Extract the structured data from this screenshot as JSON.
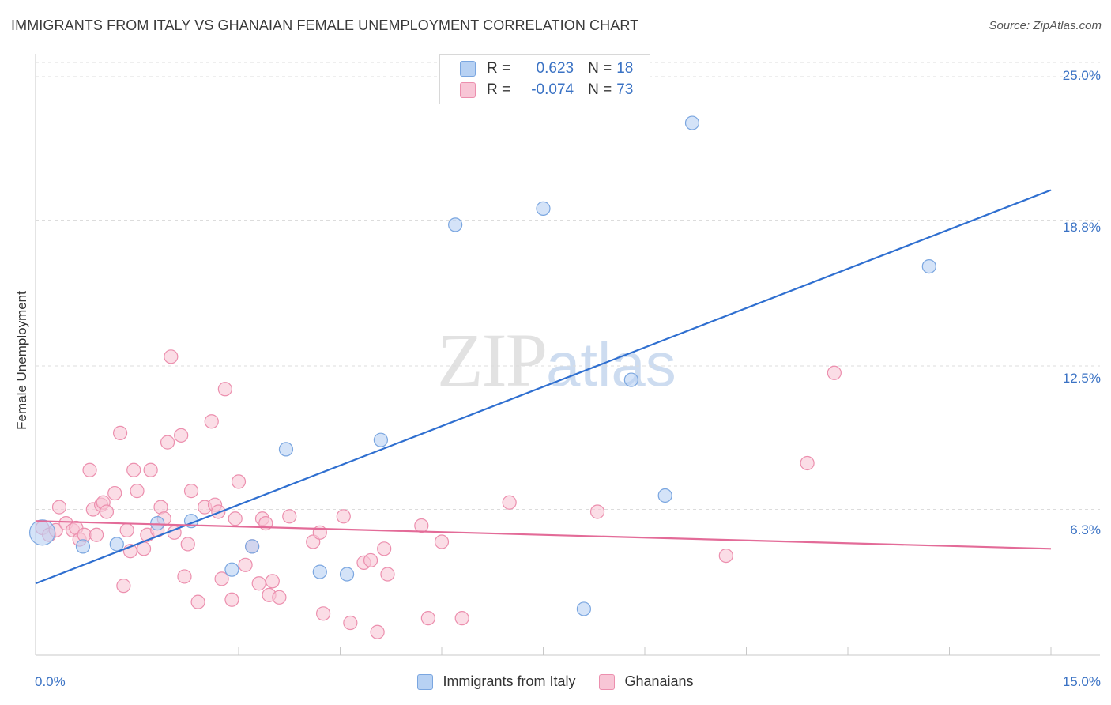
{
  "header": {
    "title": "IMMIGRANTS FROM ITALY VS GHANAIAN FEMALE UNEMPLOYMENT CORRELATION CHART",
    "source": "Source: ZipAtlas.com"
  },
  "watermark": {
    "zip": "ZIP",
    "atlas": "atlas"
  },
  "colors": {
    "blue_fill": "#b7d1f3",
    "blue_stroke": "#7aa6e0",
    "blue_line": "#2f6fd0",
    "pink_fill": "#f8c6d6",
    "pink_stroke": "#ec8fae",
    "pink_line": "#e36b98",
    "grid": "#dcdcdc",
    "axis_text": "#3a72c4"
  },
  "legend": {
    "rows": [
      {
        "r_label": "R =",
        "r_value": "0.623",
        "n_label": "N =",
        "n_value": "18"
      },
      {
        "r_label": "R =",
        "r_value": "-0.074",
        "n_label": "N =",
        "n_value": "73"
      }
    ]
  },
  "chart_data": {
    "type": "scatter",
    "title": "IMMIGRANTS FROM ITALY VS GHANAIAN FEMALE UNEMPLOYMENT CORRELATION CHART",
    "xlabel": "",
    "ylabel": "Female Unemployment",
    "xlim": [
      0,
      15
    ],
    "ylim": [
      0,
      25
    ],
    "x_tick_labels": [
      "0.0%",
      "15.0%"
    ],
    "y_ticks": [
      6.3,
      12.5,
      18.8,
      25.0
    ],
    "y_tick_labels": [
      "6.3%",
      "12.5%",
      "18.8%",
      "25.0%"
    ],
    "grid": true,
    "series": [
      {
        "name": "Immigrants from Italy",
        "color": "#b7d1f3",
        "points": [
          [
            0.1,
            5.3,
            3
          ],
          [
            0.7,
            4.7,
            1
          ],
          [
            1.2,
            4.8,
            1
          ],
          [
            1.8,
            5.7,
            1
          ],
          [
            2.3,
            5.8,
            1
          ],
          [
            2.9,
            3.7,
            1
          ],
          [
            3.2,
            4.7,
            1
          ],
          [
            3.7,
            8.9,
            1
          ],
          [
            4.2,
            3.6,
            1
          ],
          [
            4.6,
            3.5,
            1
          ],
          [
            5.1,
            9.3,
            1
          ],
          [
            6.2,
            18.6,
            1
          ],
          [
            7.5,
            19.3,
            1
          ],
          [
            8.1,
            2.0,
            1
          ],
          [
            8.8,
            11.9,
            1
          ],
          [
            9.3,
            6.9,
            1
          ],
          [
            9.7,
            23.0,
            1
          ],
          [
            13.2,
            16.8,
            1
          ]
        ],
        "trend": {
          "x": [
            0,
            15
          ],
          "y": [
            3.1,
            20.1
          ]
        }
      },
      {
        "name": "Ghanaians",
        "color": "#f8c6d6",
        "points": [
          [
            0.1,
            5.5,
            1
          ],
          [
            0.2,
            5.2,
            1
          ],
          [
            0.3,
            5.4,
            1
          ],
          [
            0.35,
            6.4,
            1
          ],
          [
            0.45,
            5.7,
            1
          ],
          [
            0.55,
            5.4,
            1
          ],
          [
            0.6,
            5.5,
            1
          ],
          [
            0.65,
            5.0,
            1
          ],
          [
            0.72,
            5.2,
            1
          ],
          [
            0.8,
            8.0,
            1
          ],
          [
            0.85,
            6.3,
            1
          ],
          [
            0.9,
            5.2,
            1
          ],
          [
            0.97,
            6.5,
            1
          ],
          [
            1.0,
            6.6,
            1
          ],
          [
            1.05,
            6.2,
            1
          ],
          [
            1.17,
            7.0,
            1
          ],
          [
            1.25,
            9.6,
            1
          ],
          [
            1.3,
            3.0,
            1
          ],
          [
            1.35,
            5.4,
            1
          ],
          [
            1.4,
            4.5,
            1
          ],
          [
            1.45,
            8.0,
            1
          ],
          [
            1.5,
            7.1,
            1
          ],
          [
            1.6,
            4.6,
            1
          ],
          [
            1.65,
            5.2,
            1
          ],
          [
            1.7,
            8.0,
            1
          ],
          [
            1.8,
            5.4,
            1
          ],
          [
            1.85,
            6.4,
            1
          ],
          [
            1.9,
            5.9,
            1
          ],
          [
            1.95,
            9.2,
            1
          ],
          [
            2.0,
            12.9,
            1
          ],
          [
            2.05,
            5.3,
            1
          ],
          [
            2.15,
            9.5,
            1
          ],
          [
            2.2,
            3.4,
            1
          ],
          [
            2.25,
            4.8,
            1
          ],
          [
            2.3,
            7.1,
            1
          ],
          [
            2.4,
            2.3,
            1
          ],
          [
            2.5,
            6.4,
            1
          ],
          [
            2.6,
            10.1,
            1
          ],
          [
            2.65,
            6.5,
            1
          ],
          [
            2.7,
            6.2,
            1
          ],
          [
            2.75,
            3.3,
            1
          ],
          [
            2.8,
            11.5,
            1
          ],
          [
            2.9,
            2.4,
            1
          ],
          [
            2.95,
            5.9,
            1
          ],
          [
            3.0,
            7.5,
            1
          ],
          [
            3.1,
            3.9,
            1
          ],
          [
            3.2,
            4.7,
            1
          ],
          [
            3.3,
            3.1,
            1
          ],
          [
            3.35,
            5.9,
            1
          ],
          [
            3.4,
            5.7,
            1
          ],
          [
            3.45,
            2.6,
            1
          ],
          [
            3.5,
            3.2,
            1
          ],
          [
            3.6,
            2.5,
            1
          ],
          [
            3.75,
            6.0,
            1
          ],
          [
            4.1,
            4.9,
            1
          ],
          [
            4.2,
            5.3,
            1
          ],
          [
            4.25,
            1.8,
            1
          ],
          [
            4.55,
            6.0,
            1
          ],
          [
            4.65,
            1.4,
            1
          ],
          [
            4.85,
            4.0,
            1
          ],
          [
            4.95,
            4.1,
            1
          ],
          [
            5.05,
            1.0,
            1
          ],
          [
            5.15,
            4.6,
            1
          ],
          [
            5.2,
            3.5,
            1
          ],
          [
            5.7,
            5.6,
            1
          ],
          [
            5.8,
            1.6,
            1
          ],
          [
            6.0,
            4.9,
            1
          ],
          [
            6.3,
            1.6,
            1
          ],
          [
            7.0,
            6.6,
            1
          ],
          [
            8.3,
            6.2,
            1
          ],
          [
            10.2,
            4.3,
            1
          ],
          [
            11.4,
            8.3,
            1
          ],
          [
            11.8,
            12.2,
            1
          ]
        ],
        "trend": {
          "x": [
            0,
            15
          ],
          "y": [
            5.8,
            4.6
          ]
        }
      }
    ]
  },
  "bottom_legend": {
    "items": [
      {
        "label": "Immigrants from Italy"
      },
      {
        "label": "Ghanaians"
      }
    ]
  }
}
